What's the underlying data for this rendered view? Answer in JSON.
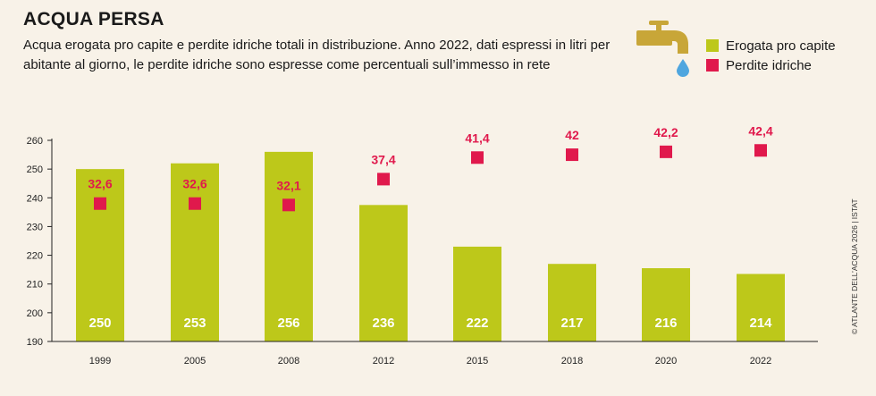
{
  "header": {
    "title": "ACQUA PERSA",
    "subtitle": "Acqua erogata pro capite e perdite idriche totali in distribuzione. Anno 2022, dati espressi in litri per abitante al giorno, le perdite idriche sono espresse come percentuali sull’immesso in rete"
  },
  "legend": {
    "erogata": "Erogata pro capite",
    "perdite": "Perdite idriche"
  },
  "source": "© ATLANTE DELL’ACQUA 2026 | ISTAT",
  "colors": {
    "bar": "#bdc81a",
    "marker": "#e0194c",
    "icon": "#c8a638",
    "drop": "#4fa6df",
    "axis": "#222222",
    "bar_label": "#ffffff"
  },
  "icon": "water-tap-icon",
  "chart_data": {
    "type": "bar",
    "categories": [
      "1999",
      "2005",
      "2008",
      "2012",
      "2015",
      "2018",
      "2020",
      "2022"
    ],
    "ylim": [
      190,
      260
    ],
    "yticks": [
      190,
      200,
      210,
      220,
      230,
      240,
      250,
      260
    ],
    "series": [
      {
        "name": "Erogata pro capite",
        "type": "bar",
        "values": [
          250,
          253,
          256,
          236,
          222,
          217,
          216,
          214
        ],
        "plotted_values": [
          250,
          252,
          256,
          237.5,
          223,
          217,
          215.5,
          213.5
        ]
      },
      {
        "name": "Perdite idriche",
        "type": "scatter",
        "values": [
          32.6,
          32.6,
          32.1,
          37.4,
          41.4,
          42,
          42.2,
          42.4
        ],
        "labels": [
          "32,6",
          "32,6",
          "32,1",
          "37,4",
          "41,4",
          "42",
          "42,2",
          "42,4"
        ],
        "plot_y": [
          238,
          238,
          237.5,
          246.5,
          254,
          255,
          256,
          256.5
        ]
      }
    ],
    "grid": false,
    "legend_position": "top-right"
  }
}
